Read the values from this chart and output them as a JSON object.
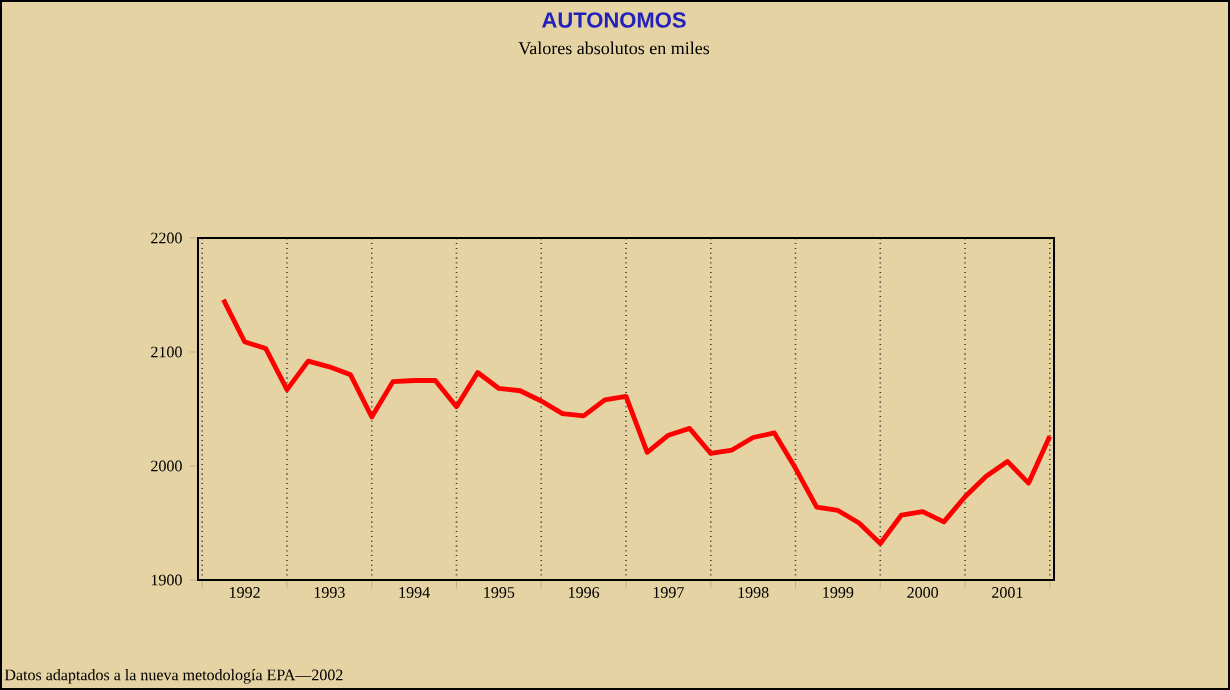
{
  "chart_data": {
    "type": "line",
    "title": "AUTONOMOS",
    "subtitle": "Valores absolutos en miles",
    "annotations": [
      "Datos adaptados a la nueva metodología EPA—2002"
    ],
    "x": [
      1992.25,
      1992.5,
      1992.75,
      1993.0,
      1993.25,
      1993.5,
      1993.75,
      1994.0,
      1994.25,
      1994.5,
      1994.75,
      1995.0,
      1995.25,
      1995.5,
      1995.75,
      1996.0,
      1996.25,
      1996.5,
      1996.75,
      1997.0,
      1997.25,
      1997.5,
      1997.75,
      1998.0,
      1998.25,
      1998.5,
      1998.75,
      1999.0,
      1999.25,
      1999.5,
      1999.75,
      2000.0,
      2000.25,
      2000.5,
      2000.75,
      2001.0,
      2001.25,
      2001.5,
      2001.75,
      2002.0
    ],
    "series": [
      {
        "color": "#ff0000",
        "values": [
          2146,
          2109,
          2103,
          2067,
          2092,
          2087,
          2080,
          2043,
          2074,
          2075,
          2075,
          2052,
          2082,
          2068,
          2066,
          2057,
          2046,
          2044,
          2058,
          2061,
          2012,
          2027,
          2033,
          2011,
          2014,
          2025,
          2029,
          1998,
          1964,
          1961,
          1950,
          1932,
          1957,
          1960,
          1951,
          1973,
          1991,
          2004,
          1985,
          2026
        ]
      }
    ],
    "xlim": [
      1991.95,
      2002.05
    ],
    "ylim": [
      1900,
      2200
    ],
    "yticks": [
      1900,
      2000,
      2100,
      2200
    ],
    "xticks": [
      {
        "value": 1992,
        "label": null
      },
      {
        "value": 1992.5,
        "label": "1992"
      },
      {
        "value": 1993,
        "label": null
      },
      {
        "value": 1993.5,
        "label": "1993"
      },
      {
        "value": 1994,
        "label": null
      },
      {
        "value": 1994.5,
        "label": "1994"
      },
      {
        "value": 1995,
        "label": null
      },
      {
        "value": 1995.5,
        "label": "1995"
      },
      {
        "value": 1996,
        "label": null
      },
      {
        "value": 1996.5,
        "label": "1996"
      },
      {
        "value": 1997,
        "label": null
      },
      {
        "value": 1997.5,
        "label": "1997"
      },
      {
        "value": 1998,
        "label": null
      },
      {
        "value": 1998.5,
        "label": "1998"
      },
      {
        "value": 1999,
        "label": null
      },
      {
        "value": 1999.5,
        "label": "1999"
      },
      {
        "value": 2000,
        "label": null
      },
      {
        "value": 2000.5,
        "label": "2000"
      },
      {
        "value": 2001,
        "label": null
      },
      {
        "value": 2001.5,
        "label": "2001"
      },
      {
        "value": 2002,
        "label": null
      }
    ],
    "grid": "x",
    "marker": "none",
    "line_style": "solid"
  }
}
